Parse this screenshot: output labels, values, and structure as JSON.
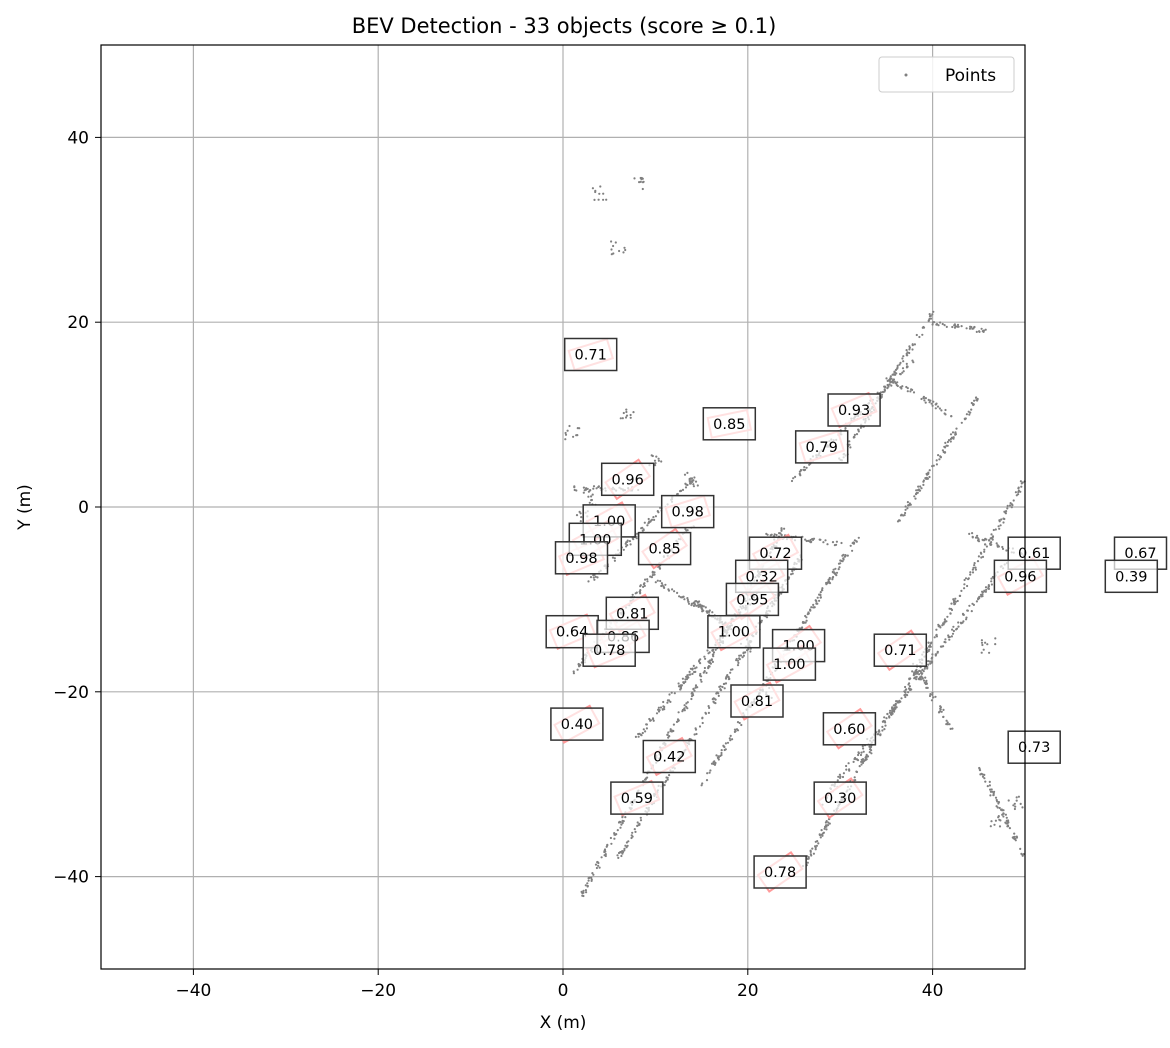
{
  "chart_data": {
    "type": "scatter",
    "title": "BEV Detection - 33 objects (score ≥ 0.1)",
    "xlabel": "X (m)",
    "ylabel": "Y (m)",
    "xlim": [
      -50,
      50
    ],
    "ylim": [
      -50,
      50
    ],
    "xticks": [
      -40,
      -20,
      0,
      20,
      40
    ],
    "yticks": [
      -40,
      -20,
      0,
      20,
      40
    ],
    "grid": true,
    "legend": {
      "placement": "top-right",
      "entries": [
        "Points"
      ]
    },
    "colors": {
      "points": "#808080",
      "boxes": "#ff9a9a",
      "label_border": "#333333",
      "grid": "#b0b0b0"
    },
    "point_segments": [
      [
        [
          2,
          -42
        ],
        [
          24,
          -2
        ]
      ],
      [
        [
          6,
          -38
        ],
        [
          26,
          -5
        ]
      ],
      [
        [
          15,
          -30
        ],
        [
          32,
          -3
        ]
      ],
      [
        [
          26,
          -39
        ],
        [
          50,
          3
        ]
      ],
      [
        [
          28,
          -32
        ],
        [
          48,
          -6
        ]
      ],
      [
        [
          8,
          -25
        ],
        [
          22,
          -8
        ]
      ],
      [
        [
          1,
          -18
        ],
        [
          14,
          -2
        ]
      ],
      [
        [
          3,
          -8
        ],
        [
          14,
          3
        ]
      ],
      [
        [
          30,
          5
        ],
        [
          40,
          21
        ]
      ],
      [
        [
          25,
          3
        ],
        [
          38,
          16
        ]
      ],
      [
        [
          36,
          -2
        ],
        [
          45,
          12
        ]
      ],
      [
        [
          40,
          20
        ],
        [
          46,
          19
        ]
      ],
      [
        [
          35,
          14
        ],
        [
          42,
          10
        ]
      ],
      [
        [
          22,
          -3
        ],
        [
          30,
          -4
        ]
      ],
      [
        [
          10,
          -8
        ],
        [
          20,
          -14
        ]
      ],
      [
        [
          44,
          -3
        ],
        [
          52,
          -6
        ]
      ],
      [
        [
          45,
          -28
        ],
        [
          50,
          -38
        ]
      ],
      [
        [
          38,
          -17
        ],
        [
          42,
          -24
        ]
      ],
      [
        [
          1,
          2
        ],
        [
          8,
          2
        ]
      ],
      [
        [
          14,
          -10
        ],
        [
          18,
          -13
        ]
      ]
    ],
    "point_clusters": [
      [
        6,
        28
      ],
      [
        8,
        35
      ],
      [
        4,
        34
      ],
      [
        7,
        10
      ],
      [
        10,
        5
      ],
      [
        14,
        3
      ],
      [
        1,
        8
      ],
      [
        2,
        -1
      ],
      [
        3,
        1
      ],
      [
        20,
        -15
      ],
      [
        22,
        -20
      ],
      [
        47,
        -34
      ],
      [
        49,
        -32
      ],
      [
        46,
        -15
      ]
    ],
    "detections": [
      {
        "x": 3.0,
        "y": 16.5,
        "yaw": 0.3,
        "score": "0.71"
      },
      {
        "x": 18.0,
        "y": 9.0,
        "yaw": 0.2,
        "score": "0.85"
      },
      {
        "x": 31.5,
        "y": 10.5,
        "yaw": 0.4,
        "score": "0.93"
      },
      {
        "x": 28.0,
        "y": 6.5,
        "yaw": 0.3,
        "score": "0.79"
      },
      {
        "x": 7.0,
        "y": 3.0,
        "yaw": 0.6,
        "score": "0.96"
      },
      {
        "x": 13.5,
        "y": -0.5,
        "yaw": 0.3,
        "score": "0.98"
      },
      {
        "x": 5.0,
        "y": -1.5,
        "yaw": 0.5,
        "score": "1.00"
      },
      {
        "x": 3.5,
        "y": -3.5,
        "yaw": 0.5,
        "score": "1.00"
      },
      {
        "x": 2.0,
        "y": -5.5,
        "yaw": 0.4,
        "score": "0.98"
      },
      {
        "x": 11.0,
        "y": -4.5,
        "yaw": 0.6,
        "score": "0.85"
      },
      {
        "x": 23.0,
        "y": -5.0,
        "yaw": 0.5,
        "score": "0.72"
      },
      {
        "x": 21.5,
        "y": -7.5,
        "yaw": 0.5,
        "score": "0.32"
      },
      {
        "x": 20.5,
        "y": -10.0,
        "yaw": 0.6,
        "score": "0.95"
      },
      {
        "x": 7.5,
        "y": -11.5,
        "yaw": 0.5,
        "score": "0.81"
      },
      {
        "x": 1.0,
        "y": -13.5,
        "yaw": 0.4,
        "score": "0.64"
      },
      {
        "x": 6.5,
        "y": -14.0,
        "yaw": 0.5,
        "score": "0.86"
      },
      {
        "x": 5.0,
        "y": -15.5,
        "yaw": 0.4,
        "score": "0.78"
      },
      {
        "x": 18.5,
        "y": -13.5,
        "yaw": 0.5,
        "score": "1.00"
      },
      {
        "x": 25.5,
        "y": -15.0,
        "yaw": 0.6,
        "score": "1.00"
      },
      {
        "x": 24.5,
        "y": -17.0,
        "yaw": 0.5,
        "score": "1.00"
      },
      {
        "x": 36.5,
        "y": -15.5,
        "yaw": 0.6,
        "score": "0.71"
      },
      {
        "x": 21.0,
        "y": -21.0,
        "yaw": 0.5,
        "score": "0.81"
      },
      {
        "x": 1.5,
        "y": -23.5,
        "yaw": 0.5,
        "score": "0.40"
      },
      {
        "x": 31.0,
        "y": -24.0,
        "yaw": 0.6,
        "score": "0.60"
      },
      {
        "x": 11.5,
        "y": -27.0,
        "yaw": 0.5,
        "score": "0.42"
      },
      {
        "x": 8.0,
        "y": -31.5,
        "yaw": 0.4,
        "score": "0.59"
      },
      {
        "x": 30.0,
        "y": -31.5,
        "yaw": 0.6,
        "score": "0.30"
      },
      {
        "x": 23.5,
        "y": -39.5,
        "yaw": 0.6,
        "score": "0.78"
      },
      {
        "x": 51.0,
        "y": -5.0,
        "yaw": 0.5,
        "score": "0.61"
      },
      {
        "x": 49.5,
        "y": -7.5,
        "yaw": 0.5,
        "score": "0.96"
      },
      {
        "x": 62.5,
        "y": -5.0,
        "yaw": 0.5,
        "score": "0.67"
      },
      {
        "x": 61.5,
        "y": -7.5,
        "yaw": 0.5,
        "score": "0.39"
      },
      {
        "x": 51.0,
        "y": -26.0,
        "yaw": 0.5,
        "score": "0.73"
      }
    ]
  }
}
